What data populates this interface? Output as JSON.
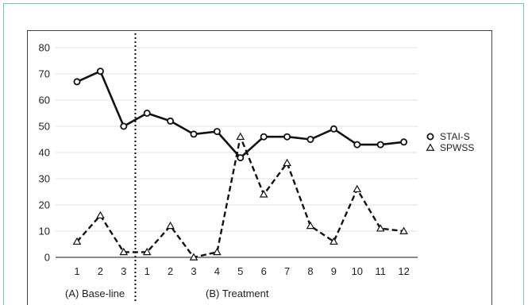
{
  "chart_data": {
    "type": "line",
    "x_ticks": [
      "1",
      "2",
      "3",
      "1",
      "2",
      "3",
      "4",
      "5",
      "6",
      "7",
      "8",
      "9",
      "10",
      "11",
      "12"
    ],
    "ylim": [
      0,
      80
    ],
    "y_ticks": [
      0,
      10,
      20,
      30,
      40,
      50,
      60,
      70,
      80
    ],
    "grid": "horizontal",
    "legend_position": "right",
    "phase_divider_after_index": 2,
    "phases": [
      {
        "label": "(A) Base-line"
      },
      {
        "label": "(B) Treatment"
      }
    ],
    "series": [
      {
        "name": "STAI-S",
        "style": "solid",
        "marker": "circle",
        "values": [
          67,
          71,
          50,
          55,
          52,
          47,
          48,
          38,
          46,
          46,
          45,
          49,
          43,
          43,
          44
        ]
      },
      {
        "name": "SPWSS",
        "style": "dashed",
        "marker": "triangle",
        "values": [
          6,
          16,
          2,
          2,
          12,
          0,
          2,
          46,
          24,
          36,
          12,
          6,
          26,
          11,
          10
        ]
      }
    ],
    "colors": {
      "frame": "#6cc5bf",
      "line": "#111111",
      "grid": "#e2e2e2"
    }
  }
}
